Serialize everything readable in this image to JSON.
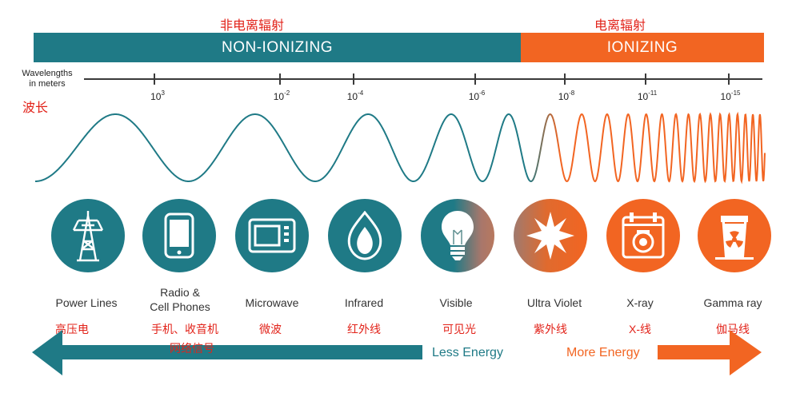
{
  "header": {
    "non_ionizing_cn": "非电离辐射",
    "ionizing_cn": "电离辐射",
    "non_ionizing": "NON-IONIZING",
    "ionizing": "IONIZING"
  },
  "axis": {
    "label_line1": "Wavelengths",
    "label_line2": "in meters",
    "label_cn": "波长",
    "ticks": [
      {
        "base": "10",
        "exp": "3"
      },
      {
        "base": "10",
        "exp": "-2"
      },
      {
        "base": "10",
        "exp": "-4"
      },
      {
        "base": "10",
        "exp": "-6"
      },
      {
        "base": "10",
        "exp": "-8"
      },
      {
        "base": "10",
        "exp": "-11"
      },
      {
        "base": "10",
        "exp": "-15"
      }
    ]
  },
  "categories": [
    {
      "en": "Power Lines",
      "en2": "",
      "cn": "高压电",
      "icon": "power-tower-icon"
    },
    {
      "en": "Radio &",
      "en2": "Cell Phones",
      "cn": "手机、收音机",
      "cn2": "网络信号",
      "icon": "cell-phone-icon"
    },
    {
      "en": "Microwave",
      "en2": "",
      "cn": "微波",
      "icon": "microwave-icon"
    },
    {
      "en": "Infrared",
      "en2": "",
      "cn": "红外线",
      "icon": "flame-icon"
    },
    {
      "en": "Visible",
      "en2": "",
      "cn": "可见光",
      "icon": "light-bulb-icon"
    },
    {
      "en": "Ultra Violet",
      "en2": "",
      "cn": "紫外线",
      "icon": "sun-icon"
    },
    {
      "en": "X-ray",
      "en2": "",
      "cn": "X-线",
      "icon": "xray-machine-icon"
    },
    {
      "en": "Gamma ray",
      "en2": "",
      "cn": "伽马线",
      "icon": "radiation-plant-icon"
    }
  ],
  "energy": {
    "less": "Less Energy",
    "more": "More Energy"
  },
  "colors": {
    "teal": "#1f7a86",
    "orange": "#f26522",
    "red_text": "#e2231a"
  }
}
